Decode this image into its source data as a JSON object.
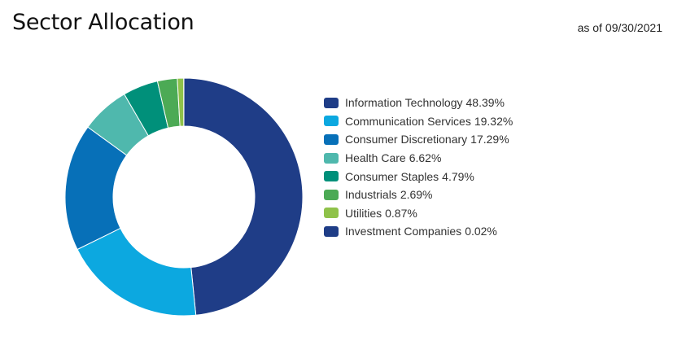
{
  "header": {
    "title": "Sector Allocation",
    "as_of_prefix": "as of",
    "as_of_date": "09/30/2021"
  },
  "chart_data": {
    "type": "pie",
    "variant": "donut",
    "title": "Sector Allocation",
    "legend_placement": "right",
    "series": [
      {
        "name": "Information Technology",
        "value": 48.39,
        "label": "48.39%",
        "color": "#1f3d87"
      },
      {
        "name": "Communication Services",
        "value": 19.32,
        "label": "19.32%",
        "color": "#0ca8e0"
      },
      {
        "name": "Consumer Discretionary",
        "value": 17.29,
        "label": "17.29%",
        "color": "#0770b8"
      },
      {
        "name": "Health Care",
        "value": 6.62,
        "label": "6.62%",
        "color": "#4fb8ad"
      },
      {
        "name": "Consumer Staples",
        "value": 4.79,
        "label": "4.79%",
        "color": "#00907a"
      },
      {
        "name": "Industrials",
        "value": 2.69,
        "label": "2.69%",
        "color": "#4caa55"
      },
      {
        "name": "Utilities",
        "value": 0.87,
        "label": "0.87%",
        "color": "#8fc24a"
      },
      {
        "name": "Investment Companies",
        "value": 0.02,
        "label": "0.02%",
        "color": "#1f3d87"
      }
    ]
  }
}
